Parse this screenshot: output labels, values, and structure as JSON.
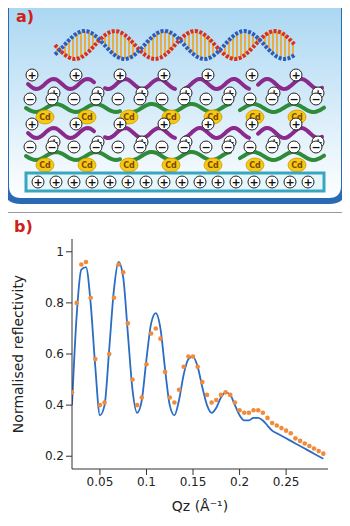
{
  "diagram": {
    "label": "a)",
    "ion": "Cd",
    "positive": "+",
    "negative": "−"
  },
  "chart_data": {
    "label": "b)",
    "type": "line",
    "ylabel": "Normalised reflectivity",
    "xlabel": "Qz (Å⁻¹)",
    "xlim": [
      0.02,
      0.295
    ],
    "ylim": [
      0.15,
      1.05
    ],
    "xticks": [
      0.05,
      0.1,
      0.15,
      0.2,
      0.25
    ],
    "yticks": [
      0.2,
      0.4,
      0.6,
      0.8,
      1
    ],
    "x": [
      0.02,
      0.025,
      0.03,
      0.035,
      0.04,
      0.045,
      0.05,
      0.055,
      0.06,
      0.065,
      0.07,
      0.075,
      0.08,
      0.085,
      0.09,
      0.095,
      0.1,
      0.105,
      0.11,
      0.115,
      0.12,
      0.125,
      0.13,
      0.135,
      0.14,
      0.145,
      0.15,
      0.155,
      0.16,
      0.165,
      0.17,
      0.175,
      0.18,
      0.185,
      0.19,
      0.195,
      0.2,
      0.205,
      0.21,
      0.215,
      0.22,
      0.225,
      0.23,
      0.235,
      0.24,
      0.245,
      0.25,
      0.255,
      0.26,
      0.265,
      0.27,
      0.275,
      0.28,
      0.285,
      0.29
    ],
    "series": [
      {
        "type": "line",
        "color": "#2b6cc4",
        "line_style": "solid",
        "values": [
          0.4,
          0.75,
          0.93,
          0.94,
          0.8,
          0.55,
          0.36,
          0.4,
          0.62,
          0.85,
          0.96,
          0.9,
          0.68,
          0.46,
          0.37,
          0.42,
          0.58,
          0.72,
          0.76,
          0.7,
          0.54,
          0.4,
          0.36,
          0.42,
          0.52,
          0.58,
          0.59,
          0.55,
          0.47,
          0.4,
          0.37,
          0.39,
          0.43,
          0.45,
          0.44,
          0.4,
          0.36,
          0.34,
          0.34,
          0.35,
          0.35,
          0.34,
          0.32,
          0.3,
          0.29,
          0.28,
          0.27,
          0.26,
          0.25,
          0.24,
          0.23,
          0.22,
          0.21,
          0.2,
          0.19
        ]
      },
      {
        "type": "scatter",
        "color": "#f28a3a",
        "marker": "circle",
        "values": [
          0.45,
          0.8,
          0.95,
          0.96,
          0.82,
          0.58,
          0.4,
          0.41,
          0.6,
          0.82,
          0.95,
          0.92,
          0.72,
          0.5,
          0.4,
          0.43,
          0.56,
          0.68,
          0.7,
          0.66,
          0.53,
          0.43,
          0.41,
          0.46,
          0.55,
          0.59,
          0.59,
          0.55,
          0.49,
          0.44,
          0.41,
          0.42,
          0.44,
          0.45,
          0.44,
          0.41,
          0.38,
          0.37,
          0.37,
          0.38,
          0.38,
          0.37,
          0.35,
          0.33,
          0.32,
          0.31,
          0.3,
          0.29,
          0.27,
          0.26,
          0.25,
          0.24,
          0.23,
          0.22,
          0.21
        ]
      }
    ]
  }
}
